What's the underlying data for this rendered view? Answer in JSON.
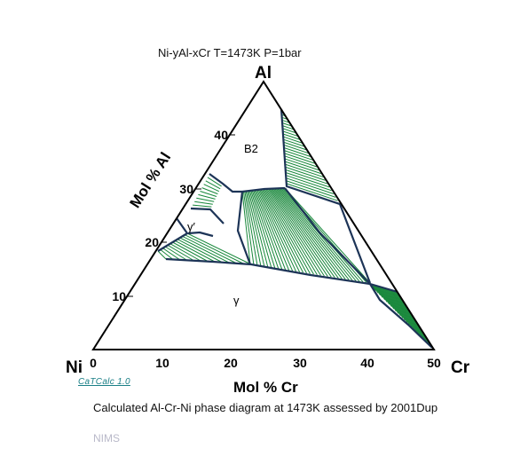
{
  "title": "Ni-yAl-xCr     T=1473K  P=1bar",
  "vertices": {
    "top": "Al",
    "left": "Ni",
    "right": "Cr"
  },
  "axes": {
    "bottom": {
      "label": "Mol % Cr",
      "ticks": [
        "0",
        "10",
        "20",
        "30",
        "40",
        "50"
      ]
    },
    "left": {
      "label": "Mol % Al",
      "ticks": [
        "10",
        "20",
        "30",
        "40"
      ]
    }
  },
  "phase_labels": {
    "b2": "B2",
    "gamma_prime": "γ′",
    "gamma": "γ"
  },
  "software_link": "CaTCalc 1.0",
  "caption": "Calculated Al-Cr-Ni phase diagram at 1473K assessed by 2001Dup",
  "footer": "NIMS",
  "colors": {
    "boundary": "#1d3457",
    "tieline": "#17873a",
    "frame": "#000000"
  }
}
